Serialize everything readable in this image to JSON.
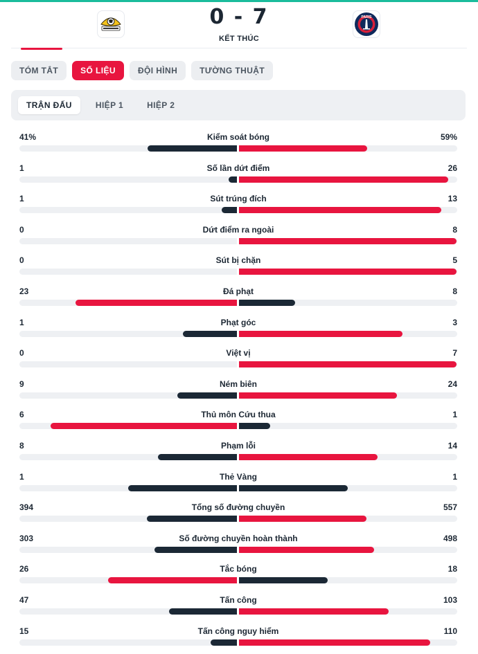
{
  "colors": {
    "accent": "#e8153f",
    "dark": "#1b2835",
    "track": "#eef0f3"
  },
  "match": {
    "home_logo": "club-crest-icon",
    "away_logo": "psg-crest-icon",
    "away_logo_text": "PARIS",
    "score": "0 - 7",
    "status": "KẾT THÚC"
  },
  "tabs": [
    {
      "label": "TÓM TẮT",
      "active": false
    },
    {
      "label": "SỐ LIỆU",
      "active": true
    },
    {
      "label": "ĐỘI HÌNH",
      "active": false
    },
    {
      "label": "TƯỜNG THUẬT",
      "active": false
    }
  ],
  "subtabs": [
    {
      "label": "TRẬN ĐẤU",
      "active": true
    },
    {
      "label": "HIỆP 1",
      "active": false
    },
    {
      "label": "HIỆP 2",
      "active": false
    }
  ],
  "stats": [
    {
      "label": "Kiểm soát bóng",
      "home": "41%",
      "away": "59%",
      "home_val": 41,
      "away_val": 59
    },
    {
      "label": "Số lần dứt điểm",
      "home": "1",
      "away": "26",
      "home_val": 1,
      "away_val": 26
    },
    {
      "label": "Sút trúng đích",
      "home": "1",
      "away": "13",
      "home_val": 1,
      "away_val": 13
    },
    {
      "label": "Dứt điểm ra ngoài",
      "home": "0",
      "away": "8",
      "home_val": 0,
      "away_val": 8
    },
    {
      "label": "Sút bị chặn",
      "home": "0",
      "away": "5",
      "home_val": 0,
      "away_val": 5
    },
    {
      "label": "Đá phạt",
      "home": "23",
      "away": "8",
      "home_val": 23,
      "away_val": 8
    },
    {
      "label": "Phạt góc",
      "home": "1",
      "away": "3",
      "home_val": 1,
      "away_val": 3
    },
    {
      "label": "Việt vị",
      "home": "0",
      "away": "7",
      "home_val": 0,
      "away_val": 7
    },
    {
      "label": "Ném biên",
      "home": "9",
      "away": "24",
      "home_val": 9,
      "away_val": 24
    },
    {
      "label": "Thủ môn Cứu thua",
      "home": "6",
      "away": "1",
      "home_val": 6,
      "away_val": 1
    },
    {
      "label": "Phạm lỗi",
      "home": "8",
      "away": "14",
      "home_val": 8,
      "away_val": 14
    },
    {
      "label": "Thẻ Vàng",
      "home": "1",
      "away": "1",
      "home_val": 1,
      "away_val": 1
    },
    {
      "label": "Tổng số đường chuyền",
      "home": "394",
      "away": "557",
      "home_val": 394,
      "away_val": 557
    },
    {
      "label": "Số đường chuyền hoàn thành",
      "home": "303",
      "away": "498",
      "home_val": 303,
      "away_val": 498
    },
    {
      "label": "Tắc bóng",
      "home": "26",
      "away": "18",
      "home_val": 26,
      "away_val": 18
    },
    {
      "label": "Tấn công",
      "home": "47",
      "away": "103",
      "home_val": 47,
      "away_val": 103
    },
    {
      "label": "Tấn công nguy hiểm",
      "home": "15",
      "away": "110",
      "home_val": 15,
      "away_val": 110
    }
  ]
}
